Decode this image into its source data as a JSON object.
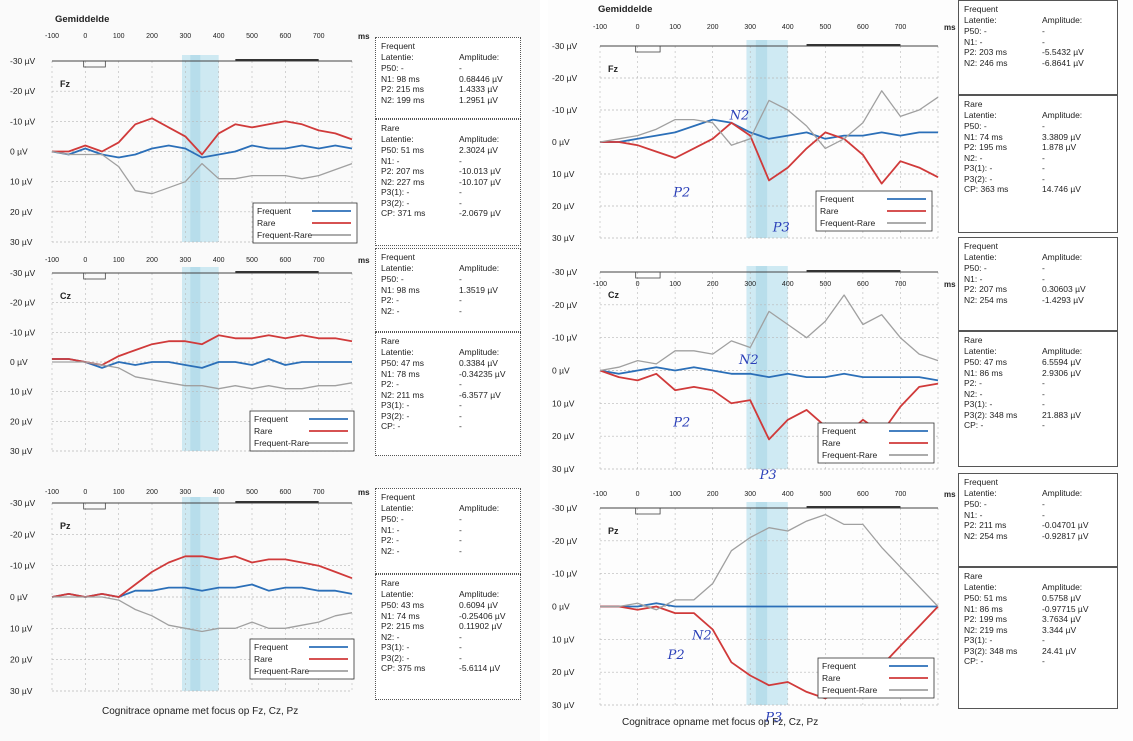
{
  "left": {
    "title": "Gemiddelde",
    "caption": "Cognitrace opname met focus op Fz, Cz, Pz",
    "x_unit": "ms",
    "x_ticks": [
      "-100",
      "0",
      "100",
      "200",
      "300",
      "400",
      "500",
      "600",
      "700"
    ],
    "legend": [
      "Frequent",
      "Rare",
      "Frequent-Rare"
    ],
    "charts": [
      {
        "channel": "Fz",
        "y_ticks": [
          "-30 µV",
          "-20 µV",
          "-10 µV",
          "0 µV",
          "10 µV",
          "20 µV",
          "30 µV"
        ]
      },
      {
        "channel": "Cz",
        "y_ticks": [
          "-30 µV",
          "-20 µV",
          "-10 µV",
          "0 µV",
          "10 µV",
          "20 µV",
          "30 µV"
        ]
      },
      {
        "channel": "Pz",
        "y_ticks": [
          "-30 µV",
          "-20 µV",
          "-10 µV",
          "0 µV",
          "10 µV",
          "20 µV",
          "30 µV"
        ]
      }
    ],
    "tables": [
      {
        "head": "Frequent",
        "lat": "Latentie:",
        "amp": "Amplitude:",
        "rows": [
          [
            "P50: -",
            "-"
          ],
          [
            "N1:  98 ms",
            "0.68446 µV"
          ],
          [
            "P2:  215 ms",
            "1.4333 µV"
          ],
          [
            "N2:  199 ms",
            "1.2951 µV"
          ]
        ]
      },
      {
        "head": "Rare",
        "lat": "Latentie:",
        "amp": "Amplitude:",
        "rows": [
          [
            "P50:  51 ms",
            "2.3024 µV"
          ],
          [
            "N1:  -",
            "-"
          ],
          [
            "P2:  207 ms",
            "-10.013 µV"
          ],
          [
            "N2: 227 ms",
            "-10.107 µV"
          ],
          [
            "P3(1): -",
            "-"
          ],
          [
            "P3(2): -",
            "-"
          ],
          [
            "CP: 371 ms",
            "-2.0679 µV"
          ]
        ]
      },
      {
        "head": "Frequent",
        "lat": "Latentie:",
        "amp": "Amplitude:",
        "rows": [
          [
            "P50: -",
            "-"
          ],
          [
            "N1:  98 ms",
            "1.3519 µV"
          ],
          [
            "P2:  -",
            "-"
          ],
          [
            "N2:  -",
            "-"
          ]
        ]
      },
      {
        "head": "Rare",
        "lat": "Latentie:",
        "amp": "Amplitude:",
        "rows": [
          [
            "P50:  47 ms",
            "0.3384 µV"
          ],
          [
            "N1:  78 ms",
            "-0.34235 µV"
          ],
          [
            "P2:  -",
            "-"
          ],
          [
            "N2: 211 ms",
            "-6.3577 µV"
          ],
          [
            "P3(1): -",
            "-"
          ],
          [
            "P3(2): -",
            "-"
          ],
          [
            "CP: -",
            "-"
          ]
        ]
      },
      {
        "head": "Frequent",
        "lat": "Latentie:",
        "amp": "Amplitude:",
        "rows": [
          [
            "P50: -",
            "-"
          ],
          [
            "N1:  -",
            "-"
          ],
          [
            "P2:  -",
            "-"
          ],
          [
            "N2:  -",
            "-"
          ]
        ]
      },
      {
        "head": "Rare",
        "lat": "Latentie:",
        "amp": "Amplitude:",
        "rows": [
          [
            "P50:  43 ms",
            "0.6094 µV"
          ],
          [
            "N1:  74 ms",
            "-0.25406 µV"
          ],
          [
            "P2:  215 ms",
            "0.11902 µV"
          ],
          [
            "N2: -",
            "-"
          ],
          [
            "P3(1): -",
            "-"
          ],
          [
            "P3(2): -",
            "-"
          ],
          [
            "CP: 375 ms",
            "-5.6114 µV"
          ]
        ]
      }
    ]
  },
  "right": {
    "title": "Gemiddelde",
    "caption": "Cognitrace opname met focus op Fz, Cz, Pz",
    "x_unit": "ms",
    "x_ticks": [
      "-100",
      "0",
      "100",
      "200",
      "300",
      "400",
      "500",
      "600",
      "700"
    ],
    "legend": [
      "Frequent",
      "Rare",
      "Frequent-Rare"
    ],
    "charts": [
      {
        "channel": "Fz",
        "y_ticks": [
          "-30 µV",
          "-20 µV",
          "-10 µV",
          "0 µV",
          "10 µV",
          "20 µV",
          "30 µV"
        ]
      },
      {
        "channel": "Cz",
        "y_ticks": [
          "-30 µV",
          "-20 µV",
          "-10 µV",
          "0 µV",
          "10 µV",
          "20 µV",
          "30 µV"
        ]
      },
      {
        "channel": "Pz",
        "y_ticks": [
          "-30 µV",
          "-20 µV",
          "-10 µV",
          "0 µV",
          "10 µV",
          "20 µV",
          "30 µV"
        ]
      }
    ],
    "tables": [
      {
        "head": "Frequent",
        "lat": "Latentie:",
        "amp": "Amplitude:",
        "rows": [
          [
            "P50: -",
            "-"
          ],
          [
            "N1: -",
            "-"
          ],
          [
            "P2:  203 ms",
            "-5.5432 µV"
          ],
          [
            "N2:  246 ms",
            "-6.8641 µV"
          ]
        ]
      },
      {
        "head": "Rare",
        "lat": "Latentie:",
        "amp": "Amplitude:",
        "rows": [
          [
            "P50: -",
            "-"
          ],
          [
            "N1:  74 ms",
            "3.3809 µV"
          ],
          [
            "P2:  195 ms",
            "1.878 µV"
          ],
          [
            "N2: -",
            "-"
          ],
          [
            "P3(1): -",
            "-"
          ],
          [
            "P3(2): -",
            "-"
          ],
          [
            "CP: 363 ms",
            "14.746 µV"
          ]
        ]
      },
      {
        "head": "Frequent",
        "lat": "Latentie:",
        "amp": "Amplitude:",
        "rows": [
          [
            "P50: -",
            "-"
          ],
          [
            "N1: -",
            "-"
          ],
          [
            "P2:  207 ms",
            "0.30603 µV"
          ],
          [
            "N2:  254 ms",
            "-1.4293 µV"
          ]
        ]
      },
      {
        "head": "Rare",
        "lat": "Latentie:",
        "amp": "Amplitude:",
        "rows": [
          [
            "P50:  47 ms",
            "6.5594 µV"
          ],
          [
            "N1:  86 ms",
            "2.9306 µV"
          ],
          [
            "P2: -",
            "-"
          ],
          [
            "N2: -",
            "-"
          ],
          [
            "P3(1): -",
            "-"
          ],
          [
            "P3(2): 348 ms",
            "21.883 µV"
          ],
          [
            "CP: -",
            "-"
          ]
        ]
      },
      {
        "head": "Frequent",
        "lat": "Latentie:",
        "amp": "Amplitude:",
        "rows": [
          [
            "P50: -",
            "-"
          ],
          [
            "N1: -",
            "-"
          ],
          [
            "P2:  211 ms",
            "-0.04701 µV"
          ],
          [
            "N2:  254 ms",
            "-0.92817 µV"
          ]
        ]
      },
      {
        "head": "Rare",
        "lat": "Latentie:",
        "amp": "Amplitude:",
        "rows": [
          [
            "P50:  51 ms",
            "0.5758 µV"
          ],
          [
            "N1:  86 ms",
            "-0.97715 µV"
          ],
          [
            "P2:  199 ms",
            "3.7634 µV"
          ],
          [
            "N2: 219 ms",
            "3.344 µV"
          ],
          [
            "P3(1): -",
            "-"
          ],
          [
            "P3(2): 348 ms",
            "24.41 µV"
          ],
          [
            "CP: -",
            "-"
          ]
        ]
      }
    ],
    "annotations": [
      {
        "chart": 0,
        "labels": [
          "N2",
          "P2",
          "P3"
        ]
      },
      {
        "chart": 1,
        "labels": [
          "N2",
          "P2",
          "P3"
        ]
      },
      {
        "chart": 2,
        "labels": [
          "P2",
          "N2",
          "P3"
        ]
      }
    ]
  },
  "colors": {
    "frequent": "#2b6fb8",
    "rare": "#d03a3a",
    "diff": "#a0a0a0",
    "highlight": "#bfe3ef",
    "grid": "#b8b8b8"
  },
  "chart_data": [
    {
      "type": "line",
      "title": "Fz",
      "xlabel": "ms",
      "ylabel": "µV",
      "xlim": [
        -100,
        800
      ],
      "ylim": [
        30,
        -30
      ],
      "x": [
        -100,
        -50,
        0,
        50,
        100,
        150,
        200,
        250,
        300,
        350,
        400,
        450,
        500,
        550,
        600,
        650,
        700,
        750,
        800
      ],
      "series": [
        {
          "name": "Frequent",
          "values": [
            0,
            1,
            -1,
            1,
            2,
            1,
            -1,
            -2,
            -1,
            2,
            1,
            0,
            -2,
            -1,
            -1,
            -2,
            -1,
            -2,
            -1
          ]
        },
        {
          "name": "Rare",
          "values": [
            0,
            0,
            -2,
            0,
            -3,
            -9,
            -11,
            -8,
            -5,
            1,
            -6,
            -9,
            -8,
            -9,
            -10,
            -9,
            -7,
            -6,
            -4
          ]
        },
        {
          "name": "Frequent-Rare",
          "values": [
            0,
            1,
            1,
            1,
            5,
            13,
            14,
            12,
            10,
            4,
            9,
            9,
            8,
            8,
            8,
            9,
            8,
            6,
            4
          ]
        }
      ]
    },
    {
      "type": "line",
      "title": "Cz",
      "xlabel": "ms",
      "ylabel": "µV",
      "xlim": [
        -100,
        800
      ],
      "ylim": [
        30,
        -30
      ],
      "x": [
        -100,
        -50,
        0,
        50,
        100,
        150,
        200,
        250,
        300,
        350,
        400,
        450,
        500,
        550,
        600,
        650,
        700,
        750,
        800
      ],
      "series": [
        {
          "name": "Frequent",
          "values": [
            -1,
            -1,
            0,
            2,
            0,
            1,
            0,
            0,
            1,
            2,
            0,
            0,
            1,
            -1,
            1,
            0,
            0,
            0,
            0
          ]
        },
        {
          "name": "Rare",
          "values": [
            -1,
            -1,
            0,
            1,
            -2,
            -4,
            -6,
            -7,
            -7,
            -6,
            -9,
            -8,
            -8,
            -9,
            -8,
            -9,
            -8,
            -8,
            -7
          ]
        },
        {
          "name": "Frequent-Rare",
          "values": [
            0,
            0,
            0,
            1,
            2,
            5,
            6,
            7,
            8,
            8,
            9,
            8,
            9,
            8,
            9,
            9,
            8,
            8,
            7
          ]
        }
      ]
    },
    {
      "type": "line",
      "title": "Pz",
      "xlabel": "ms",
      "ylabel": "µV",
      "xlim": [
        -100,
        800
      ],
      "ylim": [
        30,
        -30
      ],
      "x": [
        -100,
        -50,
        0,
        50,
        100,
        150,
        200,
        250,
        300,
        350,
        400,
        450,
        500,
        550,
        600,
        650,
        700,
        750,
        800
      ],
      "series": [
        {
          "name": "Frequent",
          "values": [
            0,
            -1,
            0,
            -1,
            0,
            -2,
            -2,
            -3,
            -3,
            -2,
            -3,
            -3,
            -4,
            -2,
            -3,
            -3,
            -2,
            -2,
            -1
          ]
        },
        {
          "name": "Rare",
          "values": [
            0,
            -1,
            0,
            -1,
            0,
            -4,
            -8,
            -11,
            -13,
            -13,
            -12,
            -13,
            -11,
            -12,
            -12,
            -11,
            -10,
            -8,
            -6
          ]
        },
        {
          "name": "Frequent-Rare",
          "values": [
            0,
            0,
            0,
            0,
            1,
            4,
            6,
            9,
            10,
            11,
            10,
            10,
            8,
            10,
            10,
            9,
            8,
            6,
            5
          ]
        }
      ]
    },
    {
      "type": "line",
      "title": "Fz",
      "xlabel": "ms",
      "ylabel": "µV",
      "xlim": [
        -100,
        800
      ],
      "ylim": [
        30,
        -30
      ],
      "x": [
        -100,
        -50,
        0,
        50,
        100,
        150,
        200,
        250,
        300,
        350,
        400,
        450,
        500,
        550,
        600,
        650,
        700,
        750,
        800
      ],
      "series": [
        {
          "name": "Frequent",
          "values": [
            0,
            0,
            -1,
            -2,
            -3,
            -5,
            -7,
            -6,
            -3,
            -1,
            -2,
            -3,
            -1,
            -2,
            -2,
            -3,
            -2,
            -3,
            -3
          ]
        },
        {
          "name": "Rare",
          "values": [
            0,
            0,
            1,
            3,
            5,
            2,
            -1,
            -6,
            -2,
            12,
            8,
            2,
            -3,
            -1,
            4,
            13,
            6,
            8,
            11
          ]
        },
        {
          "name": "Frequent-Rare",
          "values": [
            0,
            -1,
            -2,
            -4,
            -7,
            -7,
            -6,
            1,
            -1,
            -13,
            -10,
            -5,
            2,
            -1,
            -6,
            -16,
            -8,
            -10,
            -14
          ]
        }
      ]
    },
    {
      "type": "line",
      "title": "Cz",
      "xlabel": "ms",
      "ylabel": "µV",
      "xlim": [
        -100,
        800
      ],
      "ylim": [
        30,
        -30
      ],
      "x": [
        -100,
        -50,
        0,
        50,
        100,
        150,
        200,
        250,
        300,
        350,
        400,
        450,
        500,
        550,
        600,
        650,
        700,
        750,
        800
      ],
      "series": [
        {
          "name": "Frequent",
          "values": [
            0,
            1,
            0,
            -1,
            0,
            -1,
            0,
            1,
            1,
            2,
            1,
            2,
            2,
            1,
            2,
            2,
            2,
            2,
            3
          ]
        },
        {
          "name": "Rare",
          "values": [
            0,
            2,
            3,
            1,
            6,
            5,
            6,
            10,
            9,
            21,
            15,
            12,
            17,
            20,
            15,
            19,
            11,
            5,
            4
          ]
        },
        {
          "name": "Frequent-Rare",
          "values": [
            0,
            -1,
            -3,
            -2,
            -6,
            -6,
            -5,
            -9,
            -7,
            -18,
            -14,
            -10,
            -15,
            -23,
            -14,
            -17,
            -10,
            -5,
            -3
          ]
        }
      ]
    },
    {
      "type": "line",
      "title": "Pz",
      "xlabel": "ms",
      "ylabel": "µV",
      "xlim": [
        -100,
        800
      ],
      "ylim": [
        30,
        -30
      ],
      "x": [
        -100,
        -50,
        0,
        50,
        100,
        150,
        200,
        250,
        300,
        350,
        400,
        450,
        500,
        550,
        600,
        650,
        700,
        750,
        800
      ],
      "series": [
        {
          "name": "Frequent",
          "values": [
            0,
            0,
            0,
            -1,
            0,
            0,
            0,
            0,
            0,
            0,
            0,
            0,
            0,
            0,
            0,
            0,
            0,
            0,
            0
          ]
        },
        {
          "name": "Rare",
          "values": [
            0,
            0,
            1,
            0,
            2,
            2,
            7,
            17,
            21,
            24,
            23,
            26,
            28,
            25,
            25,
            18,
            12,
            6,
            0
          ]
        },
        {
          "name": "Frequent-Rare",
          "values": [
            0,
            0,
            -1,
            1,
            -2,
            -2,
            -7,
            -17,
            -21,
            -24,
            -23,
            -26,
            -28,
            -25,
            -25,
            -18,
            -12,
            -6,
            0
          ]
        }
      ]
    }
  ]
}
